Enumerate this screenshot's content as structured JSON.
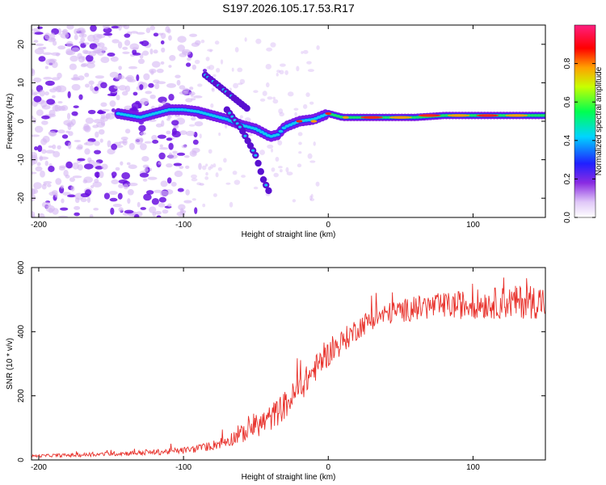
{
  "title": "S197.2026.105.17.53.R17",
  "colors": {
    "snr_line": "#e8322c",
    "axis": "#000000",
    "scatter_faint": "#d6b8f4",
    "scatter_strong": "#6a0fe0"
  },
  "chart_data": [
    {
      "type": "heatmap",
      "name": "spectrogram",
      "xlabel": "Height of straight line (km)",
      "ylabel": "Frequency (Hz)",
      "xlim": [
        -205,
        150
      ],
      "ylim": [
        -25,
        25
      ],
      "xticks": [
        -200,
        -100,
        0,
        100
      ],
      "xtick_labels": [
        "-200",
        "-100",
        "0",
        "100"
      ],
      "yticks": [
        -20,
        -10,
        0,
        10,
        20
      ],
      "ytick_labels": [
        "-20",
        "-10",
        "0",
        "10",
        "20"
      ],
      "colorbar": {
        "label": "Normalized spectral amplitude",
        "range": [
          0,
          1
        ],
        "ticks": [
          0,
          0.2,
          0.4,
          0.6,
          0.8
        ],
        "tick_labels": [
          "0.0",
          "0.2",
          "0.4",
          "0.6",
          "0.8"
        ],
        "colormap": [
          "#ffffff",
          "#8a2be2",
          "#0000ff",
          "#00e5ff",
          "#00ff00",
          "#ffff00",
          "#ff8000",
          "#ff0000",
          "#ff0080"
        ]
      },
      "features": {
        "main_track": [
          [
            -145,
            2
          ],
          [
            -130,
            1
          ],
          [
            -120,
            2
          ],
          [
            -110,
            3
          ],
          [
            -100,
            3
          ],
          [
            -90,
            2.5
          ],
          [
            -80,
            1.5
          ],
          [
            -70,
            0.5
          ],
          [
            -60,
            -1
          ],
          [
            -50,
            -2
          ],
          [
            -40,
            -4
          ],
          [
            -35,
            -3.5
          ],
          [
            -30,
            -1.5
          ],
          [
            -20,
            0
          ],
          [
            -10,
            0.5
          ],
          [
            0,
            2
          ],
          [
            10,
            1
          ],
          [
            20,
            1
          ],
          [
            40,
            1
          ],
          [
            60,
            1
          ],
          [
            80,
            1.5
          ],
          [
            100,
            1.5
          ],
          [
            120,
            1.5
          ],
          [
            150,
            1.5
          ]
        ],
        "upper_branch": [
          [
            -85,
            12
          ],
          [
            -75,
            9
          ],
          [
            -65,
            6
          ],
          [
            -55,
            3
          ]
        ],
        "lower_branch": [
          [
            -70,
            3
          ],
          [
            -60,
            -2
          ],
          [
            -50,
            -9
          ],
          [
            -45,
            -15
          ],
          [
            -40,
            -19
          ]
        ],
        "hot_spots": [
          [
            -20,
            0
          ],
          [
            -10,
            0
          ],
          [
            0,
            2
          ],
          [
            12,
            1
          ],
          [
            30,
            1
          ],
          [
            50,
            1
          ],
          [
            70,
            1.5
          ],
          [
            90,
            1.5
          ],
          [
            110,
            1.5
          ],
          [
            130,
            1.5
          ]
        ],
        "scatter_region": [
          -205,
          -95
        ]
      }
    },
    {
      "type": "line",
      "name": "snr",
      "xlabel": "Height of straight line (km)",
      "ylabel": "SNR (10 * v/v)",
      "xlim": [
        -205,
        150
      ],
      "ylim": [
        0,
        600
      ],
      "xticks": [
        -200,
        -100,
        0,
        100
      ],
      "xtick_labels": [
        "-200",
        "-100",
        "0",
        "100"
      ],
      "yticks": [
        0,
        200,
        400,
        600
      ],
      "ytick_labels": [
        "0",
        "200",
        "400",
        "600"
      ],
      "series": [
        {
          "name": "SNR",
          "x": [
            -205,
            -190,
            -175,
            -160,
            -145,
            -130,
            -115,
            -100,
            -90,
            -80,
            -70,
            -60,
            -50,
            -40,
            -30,
            -20,
            -10,
            0,
            10,
            20,
            30,
            40,
            50,
            60,
            70,
            80,
            90,
            100,
            110,
            120,
            130,
            140,
            150
          ],
          "y": [
            12,
            14,
            15,
            17,
            20,
            22,
            25,
            30,
            35,
            45,
            60,
            80,
            105,
            130,
            170,
            220,
            280,
            330,
            370,
            410,
            440,
            455,
            465,
            472,
            478,
            480,
            483,
            486,
            488,
            490,
            492,
            494,
            495
          ],
          "noise": [
            4,
            5,
            6,
            6,
            7,
            8,
            9,
            10,
            12,
            15,
            20,
            28,
            36,
            42,
            45,
            45,
            42,
            40,
            38,
            36,
            34,
            34,
            36,
            38,
            40,
            42,
            44,
            46,
            48,
            50,
            52,
            54,
            55
          ]
        }
      ]
    }
  ]
}
